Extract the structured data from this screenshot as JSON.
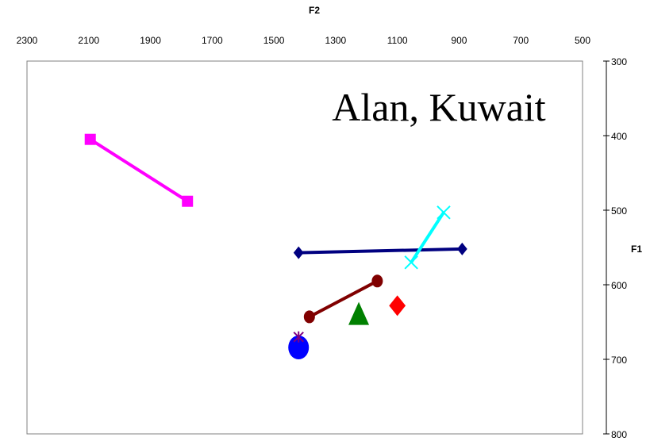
{
  "chart_data": {
    "type": "scatter",
    "annotation": "Alan, Kuwait",
    "xlabel": "F2",
    "ylabel": "F1",
    "x_ticks": [
      "2300",
      "2100",
      "1900",
      "1700",
      "1500",
      "1300",
      "1100",
      "900",
      "700",
      "500"
    ],
    "y_ticks": [
      "300",
      "400",
      "500",
      "600",
      "700",
      "800"
    ],
    "xlim": [
      2300,
      500
    ],
    "ylim": [
      300,
      800
    ],
    "x_reversed": true,
    "y_reversed": true,
    "grid": false,
    "colors": {
      "magenta": "#ff00ff",
      "navy": "#000080",
      "cyan": "#00ffff",
      "maroon": "#800000",
      "red": "#ff0000",
      "green": "#008000",
      "blue": "#0000ff",
      "purple": "#800080"
    },
    "series": [
      {
        "marker": "square",
        "color": "#ff00ff",
        "points": [
          [
            2095,
            405
          ],
          [
            1780,
            488
          ]
        ]
      },
      {
        "marker": "diamond",
        "color": "#000080",
        "points": [
          [
            1420,
            557
          ],
          [
            890,
            552
          ]
        ]
      },
      {
        "marker": "x",
        "color": "#00ffff",
        "points": [
          [
            1055,
            570
          ],
          [
            950,
            503
          ]
        ]
      },
      {
        "marker": "circle",
        "color": "#800000",
        "points": [
          [
            1385,
            643
          ],
          [
            1165,
            595
          ]
        ]
      },
      {
        "marker": "diamond",
        "color": "#ff0000",
        "points": [
          [
            1100,
            628
          ]
        ]
      },
      {
        "marker": "triangle",
        "color": "#008000",
        "points": [
          [
            1225,
            640
          ]
        ]
      },
      {
        "marker": "circle",
        "color": "#0000ff",
        "points": [
          [
            1420,
            684
          ]
        ]
      },
      {
        "marker": "star",
        "color": "#800080",
        "points": [
          [
            1420,
            670
          ]
        ]
      }
    ]
  }
}
